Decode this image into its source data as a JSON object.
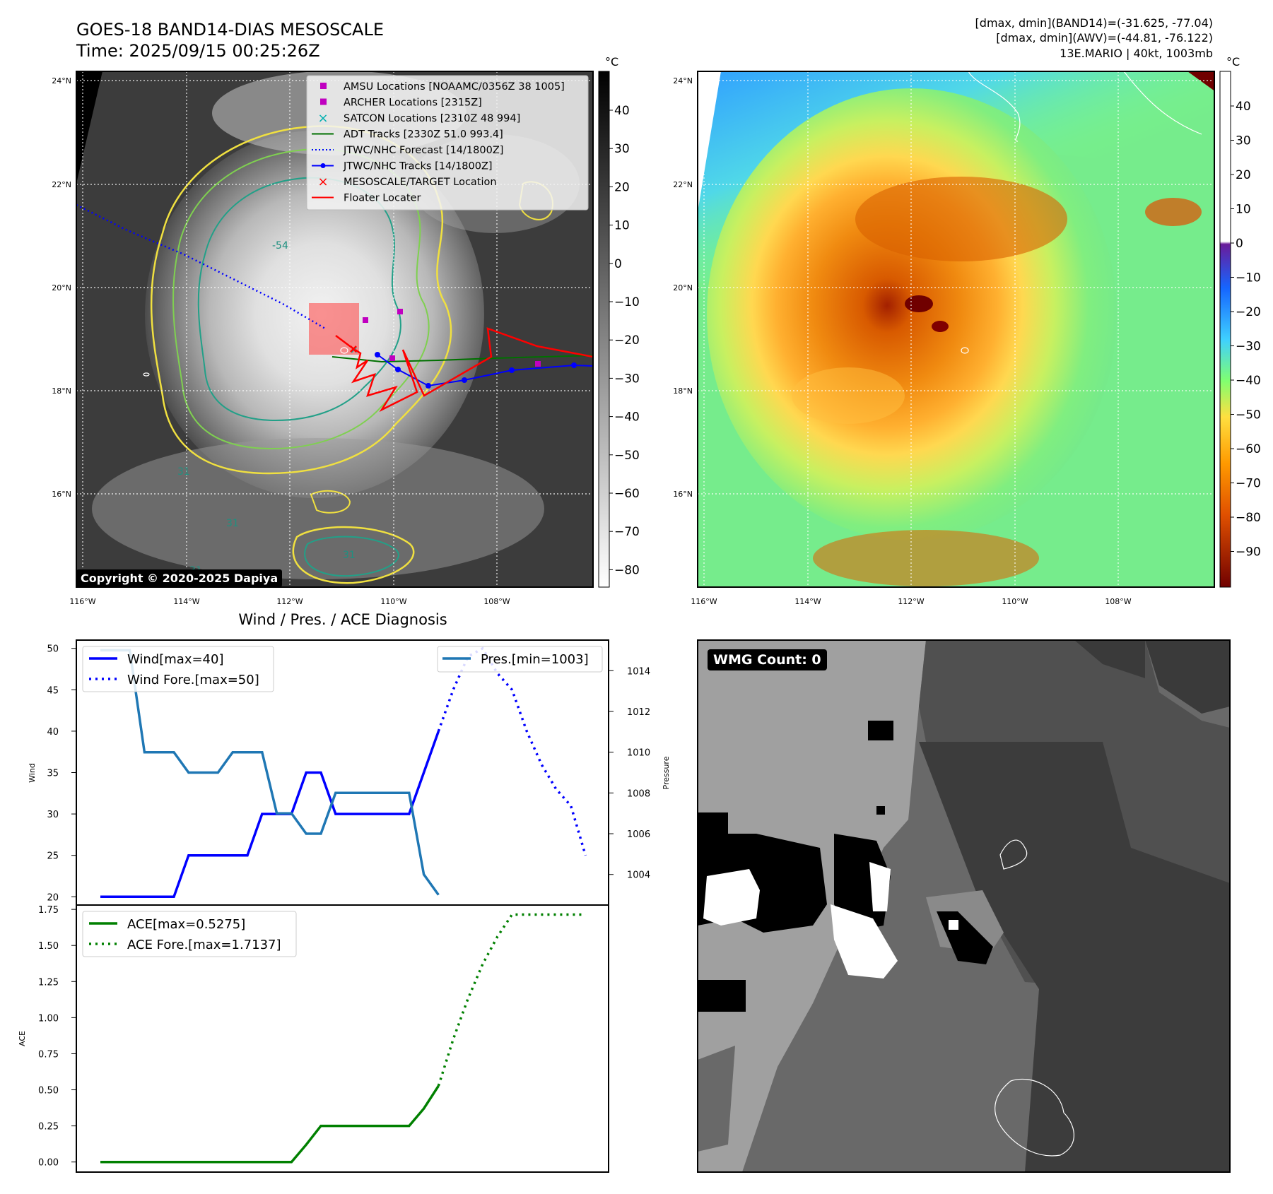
{
  "header": {
    "title_line1": "GOES-18 BAND14-DIAS MESOSCALE",
    "title_line2": "Time: 2025/09/15 00:25:26Z",
    "info_line1": "[dmax, dmin](BAND14)=(-31.625, -77.04)",
    "info_line2": "[dmax, dmin](AWV)=(-44.81, -76.122)",
    "info_line3": "13E.MARIO | 40kt, 1003mb"
  },
  "map_axes": {
    "lon_labels": [
      "116°W",
      "114°W",
      "112°W",
      "110°W",
      "108°W"
    ],
    "lat_labels": [
      "24°N",
      "22°N",
      "20°N",
      "18°N",
      "16°N"
    ]
  },
  "colorbar_left": {
    "unit": "°C",
    "ticks": [
      "40",
      "30",
      "20",
      "10",
      "0",
      "−10",
      "−20",
      "−30",
      "−40",
      "−50",
      "−60",
      "−70",
      "−80"
    ]
  },
  "colorbar_right": {
    "unit": "°C",
    "ticks": [
      "40",
      "30",
      "20",
      "10",
      "0",
      "−10",
      "−20",
      "−30",
      "−40",
      "−50",
      "−60",
      "−70",
      "−80",
      "−90"
    ]
  },
  "legend": {
    "items": [
      {
        "label": "AMSU Locations [NOAAMC/0356Z 38 1005]",
        "color": "#c000c0",
        "marker": "square"
      },
      {
        "label": "ARCHER Locations [2315Z]",
        "color": "#c000c0",
        "marker": "square"
      },
      {
        "label": "SATCON Locations [2310Z 48 994]",
        "color": "#00b0b0",
        "marker": "x"
      },
      {
        "label": "ADT Tracks [2330Z 51.0 993.4]",
        "color": "#007000",
        "marker": "line"
      },
      {
        "label": "JTWC/NHC Forecast [14/1800Z]",
        "color": "#0000ff",
        "marker": "dotted"
      },
      {
        "label": "JTWC/NHC Tracks [14/1800Z]",
        "color": "#0000ff",
        "marker": "line-dot"
      },
      {
        "label": "MESOSCALE/TARGET Location",
        "color": "#ff0000",
        "marker": "x"
      },
      {
        "label": "Floater Locater",
        "color": "#ff0000",
        "marker": "line"
      }
    ]
  },
  "contour_labels": [
    "54",
    "31",
    "31",
    "31",
    "31"
  ],
  "copyright": "Copyright © 2020-2025 Dapiya",
  "wmg_label": "WMG Count: 0",
  "chart_data": [
    {
      "type": "line",
      "title": "Wind / Pres. / ACE Diagnosis",
      "ylabel": "Wind",
      "y2label": "Pressure",
      "ylim": [
        19,
        51
      ],
      "y2lim": [
        1002.5,
        1015.5
      ],
      "yticks": [
        20,
        25,
        30,
        35,
        40,
        45,
        50
      ],
      "y2ticks": [
        1004,
        1006,
        1008,
        1010,
        1012,
        1014
      ],
      "legend_left": [
        "Wind[max=40]",
        "Wind Fore.[max=50]"
      ],
      "legend_right": [
        "Pres.[min=1003]"
      ],
      "series": [
        {
          "name": "Wind[max=40]",
          "color": "#0000ff",
          "style": "solid",
          "axis": "left",
          "x": [
            0,
            1,
            2,
            3,
            4,
            5,
            6,
            7,
            8,
            9,
            10,
            11,
            12,
            13,
            14,
            15,
            16,
            17,
            18,
            19,
            20,
            21,
            22,
            23
          ],
          "values": [
            20,
            20,
            20,
            20,
            20,
            20,
            25,
            25,
            25,
            25,
            25,
            30,
            30,
            30,
            35,
            35,
            30,
            30,
            30,
            30,
            30,
            30,
            35,
            40
          ]
        },
        {
          "name": "Wind Fore.[max=50]",
          "color": "#0000ff",
          "style": "dotted",
          "axis": "left",
          "x": [
            23,
            24,
            25,
            26,
            27,
            28,
            29,
            30,
            31,
            32,
            33
          ],
          "values": [
            40,
            45,
            49,
            50,
            47,
            45,
            40,
            36,
            33,
            31,
            25
          ]
        },
        {
          "name": "Pres.[min=1003]",
          "color": "#1f77b4",
          "style": "solid",
          "axis": "right",
          "x": [
            0,
            1,
            2,
            3,
            4,
            5,
            6,
            7,
            8,
            9,
            10,
            11,
            12,
            13,
            14,
            15,
            16,
            17,
            18,
            19,
            20,
            21,
            22,
            23
          ],
          "values": [
            1015,
            1015,
            1015,
            1010,
            1010,
            1010,
            1009,
            1009,
            1009,
            1010,
            1010,
            1010,
            1007,
            1007,
            1006,
            1006,
            1008,
            1008,
            1008,
            1008,
            1008,
            1008,
            1004,
            1003
          ]
        }
      ]
    },
    {
      "type": "line",
      "ylabel": "ACE",
      "ylim": [
        -0.07,
        1.78
      ],
      "yticks": [
        "0.00",
        "0.25",
        "0.50",
        "0.75",
        "1.00",
        "1.25",
        "1.50",
        "1.75"
      ],
      "legend": [
        "ACE[max=0.5275]",
        "ACE Fore.[max=1.7137]"
      ],
      "series": [
        {
          "name": "ACE[max=0.5275]",
          "color": "#008000",
          "style": "solid",
          "x": [
            0,
            1,
            2,
            3,
            4,
            5,
            6,
            7,
            8,
            9,
            10,
            11,
            12,
            13,
            14,
            15,
            16,
            17,
            18,
            19,
            20,
            21,
            22,
            23
          ],
          "values": [
            0,
            0,
            0,
            0,
            0,
            0,
            0,
            0,
            0,
            0,
            0,
            0,
            0,
            0,
            0.12,
            0.25,
            0.25,
            0.25,
            0.25,
            0.25,
            0.25,
            0.25,
            0.37,
            0.5275
          ]
        },
        {
          "name": "ACE Fore.[max=1.7137]",
          "color": "#008000",
          "style": "dotted",
          "x": [
            23,
            24,
            25,
            26,
            27,
            28,
            29,
            30,
            31,
            32,
            33
          ],
          "values": [
            0.5275,
            0.85,
            1.13,
            1.37,
            1.56,
            1.7137,
            1.7137,
            1.7137,
            1.7137,
            1.7137,
            1.7137
          ]
        }
      ]
    }
  ]
}
